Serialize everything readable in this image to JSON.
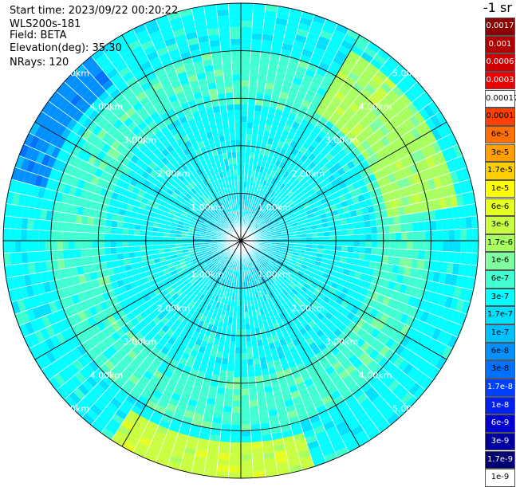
{
  "header": {
    "start_time": "Start time: 2023/09/22 00:20:22",
    "instrument": "WLS200s-181",
    "field": "Field: BETA",
    "elevation": "Elevation(deg): 35.30",
    "nrays": "NRays: 120"
  },
  "colorbar": {
    "unit_label": "-1 sr",
    "entries": [
      {
        "label": "0.0017",
        "color": "#8b0000",
        "text_color": "#ffffff"
      },
      {
        "label": "0.001",
        "color": "#b00000",
        "text_color": "#ffffff"
      },
      {
        "label": "0.0006",
        "color": "#d00000",
        "text_color": "#ffffff"
      },
      {
        "label": "0.0003",
        "color": "#ee0000",
        "text_color": "#ffffff"
      },
      {
        "label": "0.00017",
        "color": "#ffffff",
        "text_color": "#000000"
      },
      {
        "label": "0.0001",
        "color": "#ff4000",
        "text_color": "#000000"
      },
      {
        "label": "6e-5",
        "color": "#ff7000",
        "text_color": "#000000"
      },
      {
        "label": "3e-5",
        "color": "#ffa000",
        "text_color": "#000000"
      },
      {
        "label": "1.7e-5",
        "color": "#ffd000",
        "text_color": "#000000"
      },
      {
        "label": "1e-5",
        "color": "#ffff00",
        "text_color": "#000000"
      },
      {
        "label": "6e-6",
        "color": "#e6ff20",
        "text_color": "#000000"
      },
      {
        "label": "3e-6",
        "color": "#c8ff40",
        "text_color": "#000000"
      },
      {
        "label": "1.7e-6",
        "color": "#a8ff60",
        "text_color": "#000000"
      },
      {
        "label": "1e-6",
        "color": "#80ffa0",
        "text_color": "#000000"
      },
      {
        "label": "6e-7",
        "color": "#40ffd0",
        "text_color": "#000000"
      },
      {
        "label": "3e-7",
        "color": "#00ffff",
        "text_color": "#000000"
      },
      {
        "label": "1.7e-7",
        "color": "#00e0ff",
        "text_color": "#000000"
      },
      {
        "label": "1e-7",
        "color": "#00c0ff",
        "text_color": "#000000"
      },
      {
        "label": "6e-8",
        "color": "#0090ff",
        "text_color": "#000000"
      },
      {
        "label": "3e-8",
        "color": "#0070ff",
        "text_color": "#000000"
      },
      {
        "label": "1.7e-8",
        "color": "#0040ff",
        "text_color": "#ffffff"
      },
      {
        "label": "1e-8",
        "color": "#0020f0",
        "text_color": "#ffffff"
      },
      {
        "label": "6e-9",
        "color": "#0000d0",
        "text_color": "#ffffff"
      },
      {
        "label": "3e-9",
        "color": "#0000a0",
        "text_color": "#ffffff"
      },
      {
        "label": "1.7e-9",
        "color": "#000070",
        "text_color": "#ffffff"
      },
      {
        "label": "1e-9",
        "color": "#ffffff",
        "text_color": "#000000"
      }
    ]
  },
  "chart_data": {
    "type": "heatmap",
    "projection": "polar PPI",
    "field": "BETA",
    "n_rays": 120,
    "max_range_km": 5.0,
    "range_rings_km": [
      1.0,
      2.0,
      3.0,
      4.0,
      5.0
    ],
    "ring_labels": [
      "1.00km",
      "2.00km",
      "3.00km",
      "4.00km",
      "5.00km"
    ],
    "spoke_angles_deg": [
      0,
      30,
      60,
      90,
      120,
      150,
      180,
      210,
      240,
      270,
      300,
      330
    ],
    "dominant_value_range": [
      "3e-7",
      "1.7e-6"
    ],
    "ring_regions": [
      {
        "range_km": [
          0.0,
          1.0
        ],
        "value": "1.7e-7"
      },
      {
        "range_km": [
          1.0,
          2.8
        ],
        "value": "3e-7"
      },
      {
        "range_km": [
          2.8,
          4.0
        ],
        "value": "6e-7"
      },
      {
        "range_km": [
          4.0,
          5.0
        ],
        "value": "3e-7"
      }
    ],
    "high_regions": [
      {
        "azimuth_deg": [
          30,
          80
        ],
        "range_km": [
          3.0,
          4.6
        ],
        "value": "1.7e-6"
      },
      {
        "azimuth_deg": [
          160,
          210
        ],
        "range_km": [
          4.2,
          5.0
        ],
        "value": "3e-6"
      }
    ],
    "low_regions": [
      {
        "azimuth_deg": [
          285,
          320
        ],
        "range_km": [
          4.2,
          5.0
        ],
        "value": "6e-8"
      }
    ]
  }
}
